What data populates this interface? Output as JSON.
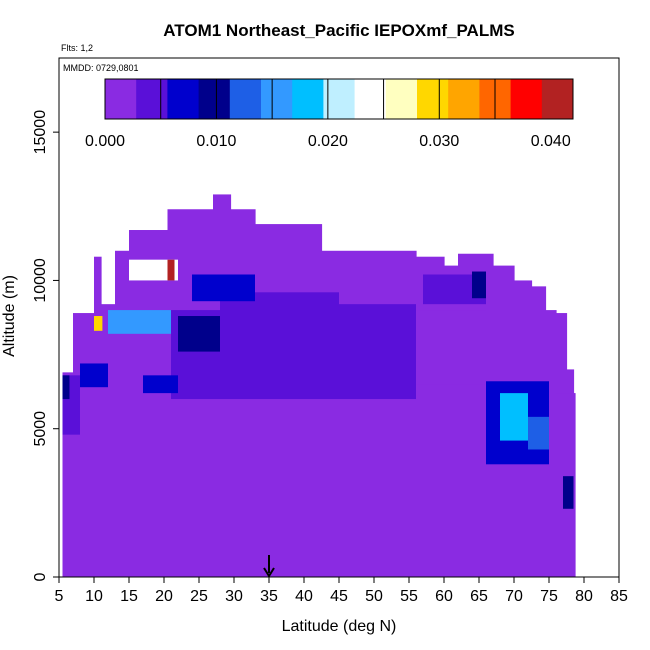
{
  "chart_data": {
    "type": "heatmap",
    "title": "ATOM1 Northeast_Pacific IEPOXmf_PALMS",
    "subtitle_flights": "Flts: 1,2",
    "subtitle_dates": "MMDD: 0729,0801",
    "xlabel": "Latitude (deg N)",
    "ylabel": "Altitude (m)",
    "xlim": [
      5,
      85
    ],
    "ylim": [
      0,
      17500
    ],
    "xticks": [
      "5",
      "10",
      "15",
      "20",
      "25",
      "30",
      "35",
      "40",
      "45",
      "50",
      "55",
      "60",
      "65",
      "70",
      "75",
      "80",
      "85"
    ],
    "yticks": [
      "0",
      "5000",
      "10000",
      "15000"
    ],
    "colorbar": {
      "range": [
        0,
        0.042
      ],
      "ticks": [
        "0.000",
        "0.010",
        "0.020",
        "0.030",
        "0.040"
      ],
      "colors": [
        "#8a2be2",
        "#5a10d8",
        "#0000cd",
        "#00008b",
        "#1e5fe6",
        "#3399ff",
        "#00bfff",
        "#bfefff",
        "#ffffff",
        "#ffffc0",
        "#ffd700",
        "#ffa500",
        "#ff6600",
        "#ff0000",
        "#b22222"
      ],
      "background_value_color": "#8a2be2"
    },
    "marker_latitude": 35,
    "grid": false,
    "elevated_features": [
      {
        "lat_min": 12,
        "lat_max": 21,
        "alt_min": 8200,
        "alt_max": 9000,
        "value": 0.014,
        "label": "15N 8-9 km blue"
      },
      {
        "lat_min": 10,
        "lat_max": 11.2,
        "alt_min": 8300,
        "alt_max": 8800,
        "value": 0.03,
        "label": "10N 8.5 km yellow"
      },
      {
        "lat_min": 15,
        "lat_max": 22,
        "alt_min": 10000,
        "alt_max": 10700,
        "value": 0.024,
        "label": "18N 10 km white"
      },
      {
        "lat_min": 20.5,
        "lat_max": 21.5,
        "alt_min": 10000,
        "alt_max": 10700,
        "value": 0.041,
        "label": "21N 10 km red"
      },
      {
        "lat_min": 68,
        "lat_max": 72,
        "alt_min": 4600,
        "alt_max": 6200,
        "value": 0.018,
        "label": "70N 5 km cyan"
      }
    ]
  }
}
